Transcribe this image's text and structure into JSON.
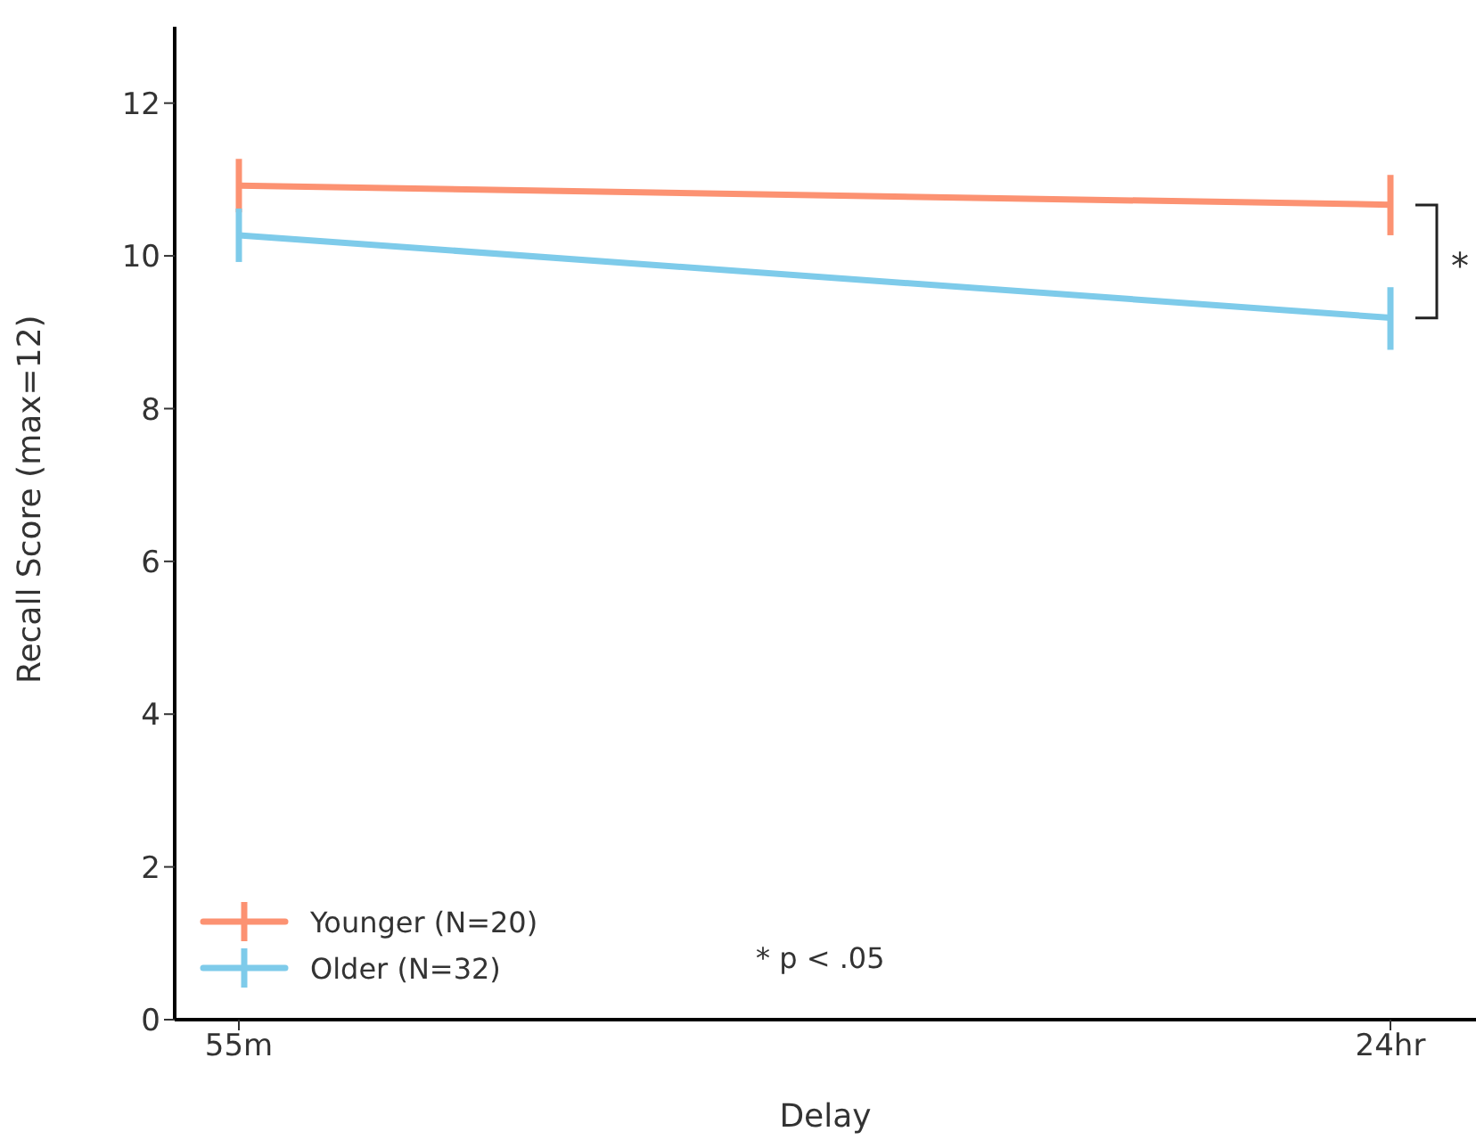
{
  "chart_data": {
    "type": "line",
    "xlabel": "Delay",
    "ylabel": "Recall Score (max=12)",
    "categories": [
      "55m",
      "24hr"
    ],
    "series": [
      {
        "name": "Younger (N=20)",
        "color": "#fc9272",
        "values": [
          10.92,
          10.67
        ],
        "errors": [
          [
            10.57,
            11.27
          ],
          [
            10.27,
            11.06
          ]
        ]
      },
      {
        "name": "Older (N=32)",
        "color": "#7ecbea",
        "values": [
          10.27,
          9.19
        ],
        "errors": [
          [
            9.92,
            10.62
          ],
          [
            8.77,
            9.59
          ]
        ]
      }
    ],
    "ylim": [
      0,
      13
    ],
    "yticks": [
      0,
      2,
      4,
      6,
      8,
      10,
      12
    ],
    "legend": "bottom left",
    "marker": "none",
    "line_style": "solid",
    "annotations": [
      "*",
      "* p < .05"
    ]
  }
}
